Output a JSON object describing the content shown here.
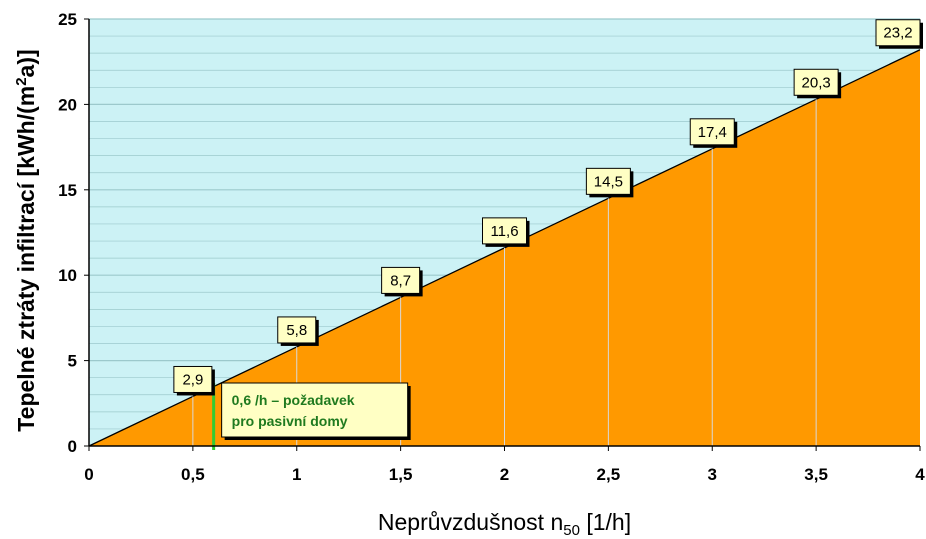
{
  "chart_data": {
    "type": "area",
    "title": "",
    "xlabel_main": "Neprůvzdušnost n",
    "xlabel_sub": "50",
    "xlabel_unit": " [1/h]",
    "ylabel_pre": "Tepelné ztráty infiltrací [kWh/(m",
    "ylabel_sup": "2",
    "ylabel_post": "a)]",
    "xlim": [
      0,
      4
    ],
    "ylim": [
      0,
      25
    ],
    "x_ticks": [
      "0",
      "0,5",
      "1",
      "1,5",
      "2",
      "2,5",
      "3",
      "3,5",
      "4"
    ],
    "y_ticks": [
      "0",
      "5",
      "10",
      "15",
      "20",
      "25"
    ],
    "x": [
      0,
      0.5,
      1,
      1.5,
      2,
      2.5,
      3,
      3.5,
      4
    ],
    "y": [
      0,
      2.9,
      5.8,
      8.7,
      11.6,
      14.5,
      17.4,
      20.3,
      23.2
    ],
    "data_labels": [
      {
        "x": 0.5,
        "y": 2.9,
        "text": "2,9"
      },
      {
        "x": 1,
        "y": 5.8,
        "text": "5,8"
      },
      {
        "x": 1.5,
        "y": 8.7,
        "text": "8,7"
      },
      {
        "x": 2,
        "y": 11.6,
        "text": "11,6"
      },
      {
        "x": 2.5,
        "y": 14.5,
        "text": "14,5"
      },
      {
        "x": 3,
        "y": 17.4,
        "text": "17,4"
      },
      {
        "x": 3.5,
        "y": 20.3,
        "text": "20,3"
      },
      {
        "x": 4,
        "y": 23.2,
        "text": "23,2"
      }
    ],
    "annotation": {
      "x": 0.6,
      "line1": "0,6 /h – požadavek",
      "line2": "pro pasivní domy"
    },
    "grid": true,
    "legend": "none",
    "colors": {
      "area_fill": "#ff9900",
      "plot_background": "#ccf2f5",
      "gridline": "#9cc9cc",
      "label_box": "#ffffc4",
      "marker_line": "#33cc33",
      "note_text": "#1f7a1f"
    }
  }
}
